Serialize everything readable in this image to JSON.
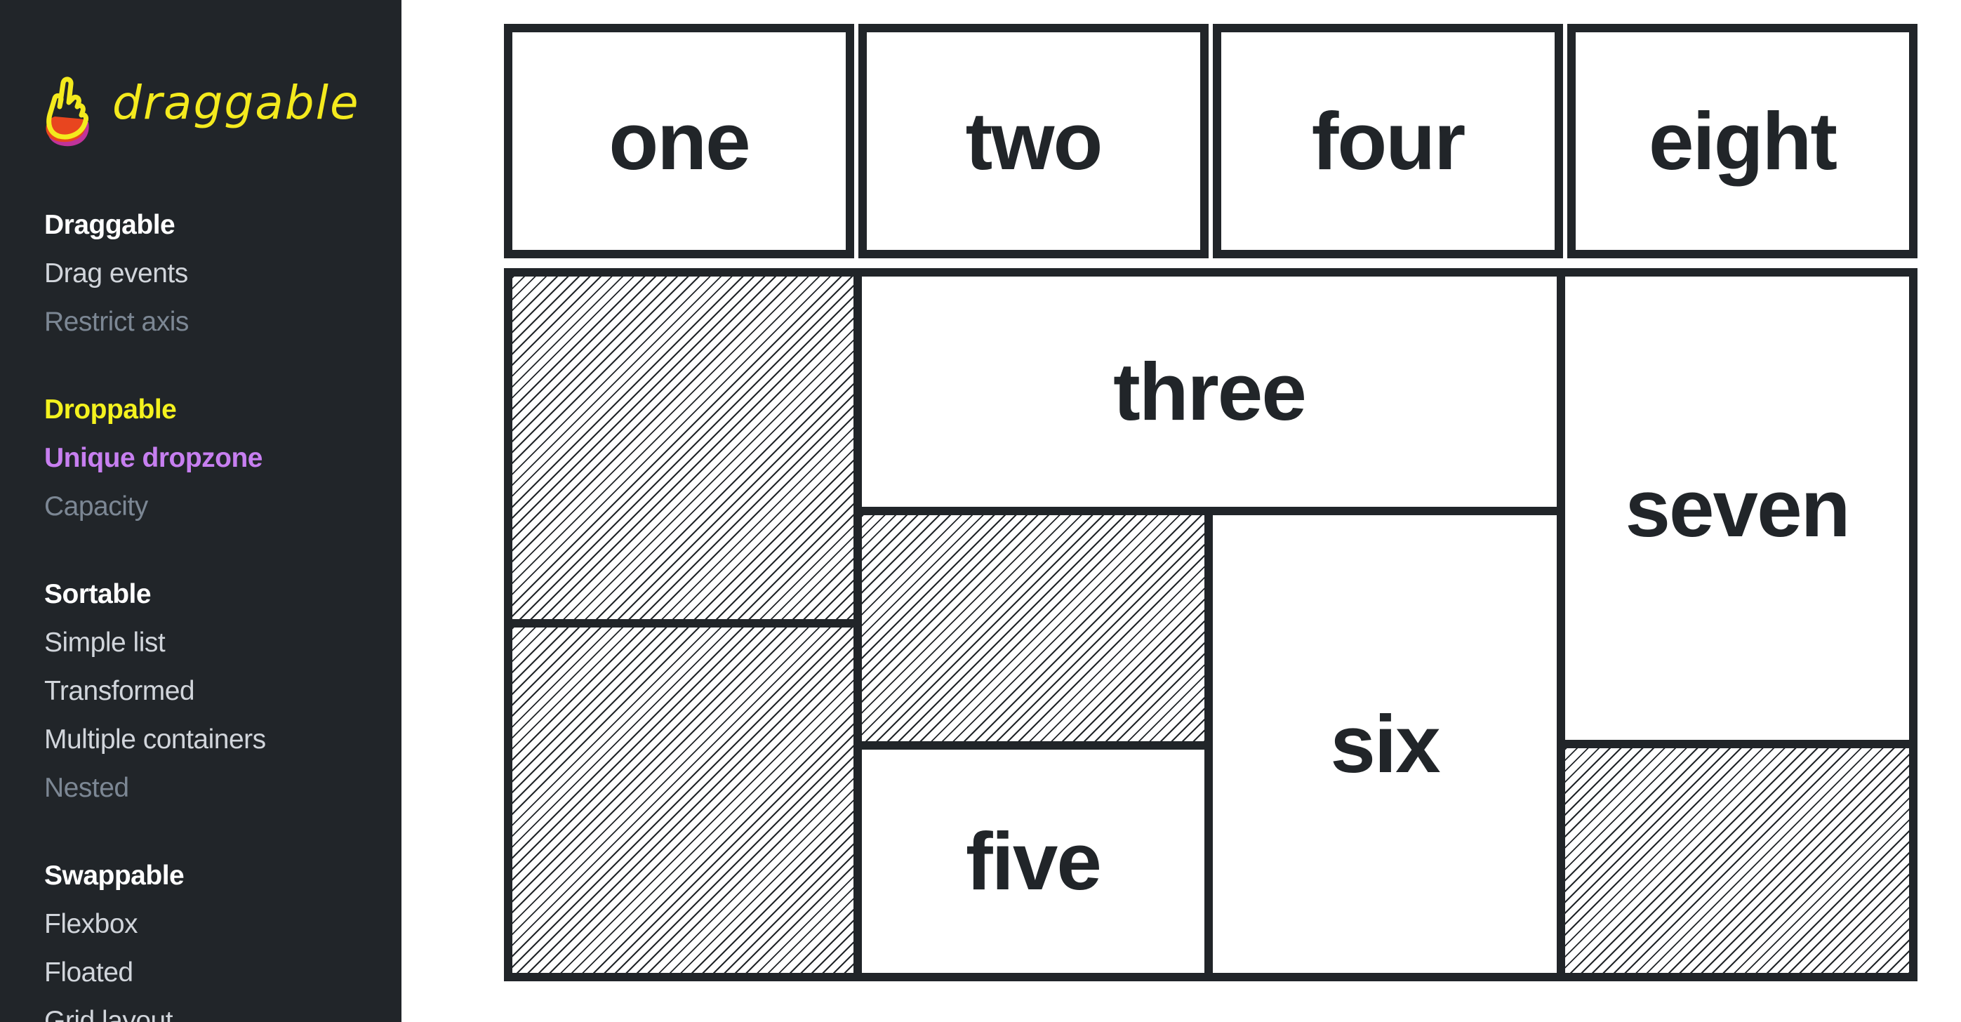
{
  "logo": {
    "text": "draggable",
    "icon": "hand-pointer-icon",
    "colors": {
      "primary": "#f4ea1d",
      "secondary": "#e8451f",
      "tertiary": "#c0339a"
    }
  },
  "sidebar": {
    "groups": [
      {
        "title": "Draggable",
        "items": [
          "Drag events",
          "Restrict axis"
        ]
      },
      {
        "title": "Droppable",
        "items": [
          "Unique dropzone",
          "Capacity"
        ]
      },
      {
        "title": "Sortable",
        "items": [
          "Simple list",
          "Transformed",
          "Multiple containers",
          "Nested"
        ]
      },
      {
        "title": "Swappable",
        "items": [
          "Flexbox",
          "Floated",
          "Grid layout"
        ]
      }
    ]
  },
  "dropzones": {
    "one": "one",
    "two": "two",
    "four": "four",
    "eight": "eight",
    "three": "three",
    "seven": "seven",
    "six": "six",
    "five": "five"
  },
  "colors": {
    "sidebar_bg": "#212529",
    "active_section": "#f4f21e",
    "active_link": "#c77ff0",
    "border": "#212529"
  }
}
